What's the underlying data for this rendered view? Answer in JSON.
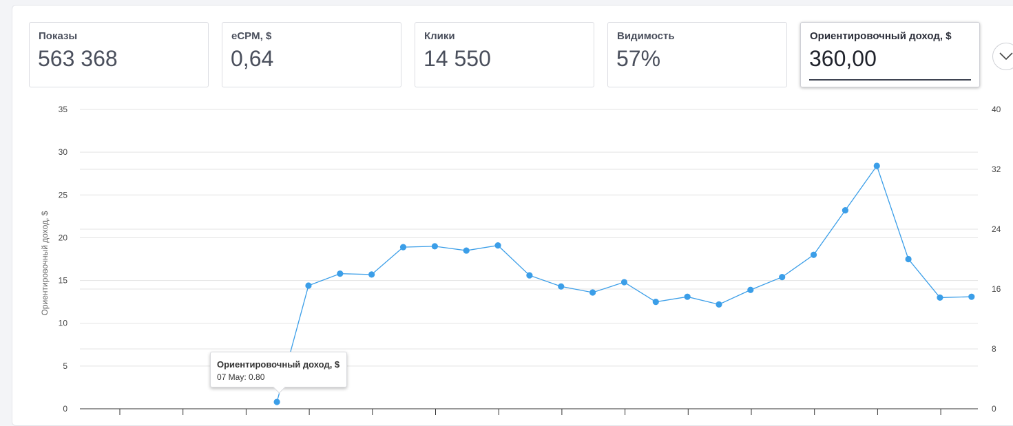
{
  "metrics": {
    "impressions": {
      "label": "Показы",
      "value": "563 368"
    },
    "ecpm": {
      "label": "eCPM, $",
      "value": "0,64"
    },
    "clicks": {
      "label": "Клики",
      "value": "14 550"
    },
    "visibility": {
      "label": "Видимость",
      "value": "57%"
    },
    "revenue": {
      "label": "Ориентировочный доход, $",
      "value": "360,00"
    }
  },
  "toggle_icon": "chevron-down-icon",
  "tooltip": {
    "title": "Ориентировочный доход, $",
    "body": "07 May: 0.80"
  },
  "colors": {
    "series": "#3b9ee8",
    "grid": "#e3e3e3",
    "axis": "#333333"
  },
  "chart_data": {
    "type": "line",
    "ylabel": "Ориентировочный доход, $",
    "y2label": "",
    "ylim": [
      0,
      35
    ],
    "y2lim": [
      0,
      40
    ],
    "yticks": [
      "0",
      "5",
      "10",
      "15",
      "20",
      "25",
      "30",
      "35"
    ],
    "y2ticks": [
      "0",
      "8",
      "16",
      "24",
      "32",
      "40"
    ],
    "grid": true,
    "series": [
      {
        "values": [
          null,
          null,
          null,
          null,
          null,
          null,
          0.8,
          14.4,
          15.8,
          15.7,
          18.9,
          19.0,
          18.5,
          19.1,
          15.6,
          14.3,
          13.6,
          14.8,
          12.5,
          13.1,
          12.2,
          13.9,
          15.4,
          18.0,
          23.2,
          28.4,
          17.5,
          13.0,
          13.1
        ]
      }
    ]
  }
}
